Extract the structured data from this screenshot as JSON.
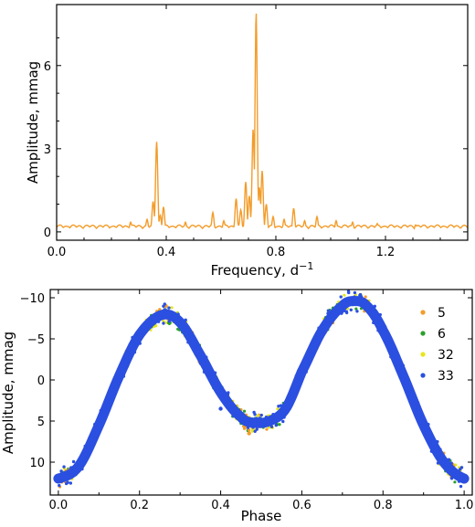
{
  "chart_data": [
    {
      "type": "line",
      "xlabel": "Frequency, d",
      "xlabel_sup": "−1",
      "ylabel": "Amplitude, mmag",
      "xlim": [
        0,
        1.5
      ],
      "ylim": [
        -0.3,
        8.2
      ],
      "xticks": [
        0.0,
        0.4,
        0.8,
        1.2
      ],
      "xtick_labels": [
        "0.0",
        "0.4",
        "0.8",
        "1.2"
      ],
      "yticks": [
        0,
        3,
        6
      ],
      "ytick_labels": [
        "0",
        "3",
        "6"
      ],
      "grid": false,
      "color": "#f39c2a",
      "baseline": 0.12,
      "peaks": [
        {
          "x": 0.27,
          "y": 0.35
        },
        {
          "x": 0.33,
          "y": 0.45
        },
        {
          "x": 0.352,
          "y": 1.1
        },
        {
          "x": 0.365,
          "y": 3.25
        },
        {
          "x": 0.378,
          "y": 0.6
        },
        {
          "x": 0.39,
          "y": 0.9
        },
        {
          "x": 0.47,
          "y": 0.35
        },
        {
          "x": 0.57,
          "y": 0.7
        },
        {
          "x": 0.61,
          "y": 0.4
        },
        {
          "x": 0.655,
          "y": 1.2
        },
        {
          "x": 0.672,
          "y": 0.8
        },
        {
          "x": 0.69,
          "y": 1.8
        },
        {
          "x": 0.703,
          "y": 1.3
        },
        {
          "x": 0.717,
          "y": 3.7
        },
        {
          "x": 0.728,
          "y": 7.9
        },
        {
          "x": 0.74,
          "y": 1.6
        },
        {
          "x": 0.75,
          "y": 2.2
        },
        {
          "x": 0.765,
          "y": 1.0
        },
        {
          "x": 0.79,
          "y": 0.55
        },
        {
          "x": 0.83,
          "y": 0.45
        },
        {
          "x": 0.865,
          "y": 0.85
        },
        {
          "x": 0.905,
          "y": 0.4
        },
        {
          "x": 0.95,
          "y": 0.55
        },
        {
          "x": 1.02,
          "y": 0.4
        },
        {
          "x": 1.08,
          "y": 0.35
        },
        {
          "x": 1.17,
          "y": 0.3
        },
        {
          "x": 1.31,
          "y": 0.25
        },
        {
          "x": 1.44,
          "y": 0.25
        }
      ]
    },
    {
      "type": "scatter",
      "xlabel": "Phase",
      "ylabel": "Amplitude, mmag",
      "xlim": [
        -0.02,
        1.02
      ],
      "ylim": [
        14,
        -11
      ],
      "y_inverted": true,
      "xticks": [
        0.0,
        0.2,
        0.4,
        0.6,
        0.8,
        1.0
      ],
      "xtick_labels": [
        "0.0",
        "0.2",
        "0.4",
        "0.6",
        "0.8",
        "1.0"
      ],
      "yticks": [
        -10,
        -5,
        0,
        5,
        10
      ],
      "ytick_labels": [
        "−10",
        "−5",
        "0",
        "5",
        "10"
      ],
      "grid": false,
      "legend_position": "top-right",
      "series": [
        {
          "name": "5",
          "color": "#f39c2a"
        },
        {
          "name": "6",
          "color": "#2ca02c"
        },
        {
          "name": "32",
          "color": "#e6e619"
        },
        {
          "name": "33",
          "color": "#2b4fe0"
        }
      ],
      "curve_points": [
        {
          "x": 0.0,
          "y": 12
        },
        {
          "x": 0.05,
          "y": 10.5
        },
        {
          "x": 0.1,
          "y": 5.5
        },
        {
          "x": 0.15,
          "y": -0.5
        },
        {
          "x": 0.2,
          "y": -5.5
        },
        {
          "x": 0.255,
          "y": -7.9
        },
        {
          "x": 0.3,
          "y": -7.0
        },
        {
          "x": 0.35,
          "y": -3.0
        },
        {
          "x": 0.4,
          "y": 1.5
        },
        {
          "x": 0.45,
          "y": 4.5
        },
        {
          "x": 0.48,
          "y": 5.2
        },
        {
          "x": 0.52,
          "y": 5.0
        },
        {
          "x": 0.56,
          "y": 3.5
        },
        {
          "x": 0.6,
          "y": -1.0
        },
        {
          "x": 0.65,
          "y": -6.0
        },
        {
          "x": 0.7,
          "y": -9.0
        },
        {
          "x": 0.73,
          "y": -9.6
        },
        {
          "x": 0.76,
          "y": -9.0
        },
        {
          "x": 0.8,
          "y": -6.0
        },
        {
          "x": 0.85,
          "y": -0.5
        },
        {
          "x": 0.9,
          "y": 5.5
        },
        {
          "x": 0.95,
          "y": 10.0
        },
        {
          "x": 1.0,
          "y": 12
        }
      ],
      "dip_scatter": [
        {
          "series": "5",
          "x": 0.47,
          "y": 6.5
        },
        {
          "series": "32",
          "x": 0.48,
          "y": 6.0
        },
        {
          "series": "32",
          "x": 0.52,
          "y": 5.7
        },
        {
          "series": "5",
          "x": 0.265,
          "y": -9.0
        },
        {
          "series": "32",
          "x": 0.745,
          "y": -10.3
        },
        {
          "series": "6",
          "x": 0.43,
          "y": 3.8
        },
        {
          "series": "6",
          "x": 0.58,
          "y": 1.8
        },
        {
          "series": "33",
          "x": 0.4,
          "y": 3.5
        },
        {
          "series": "6",
          "x": 0.63,
          "y": -4.0
        }
      ]
    }
  ]
}
